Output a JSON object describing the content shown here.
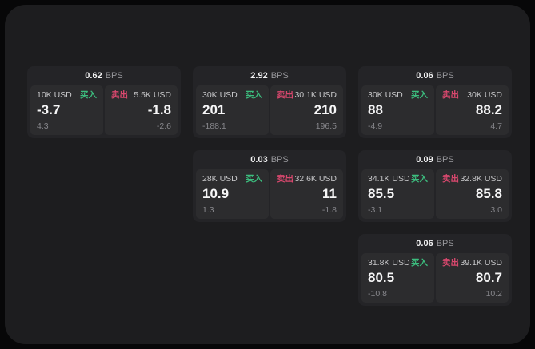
{
  "labels": {
    "bps_unit": "BPS",
    "buy": "买入",
    "sell": "卖出"
  },
  "colors": {
    "buy_green": "#3cbd7e",
    "sell_red": "#d9486e",
    "panel_bg": "#1d1d1f",
    "card_bg": "#242427",
    "tile_bg": "#2c2c2e"
  },
  "cards": [
    {
      "spread": "0.62",
      "buy": {
        "amount": "10K USD",
        "price": "-3.7",
        "change": "4.3"
      },
      "sell": {
        "amount": "5.5K USD",
        "price": "-1.8",
        "change": "-2.6"
      }
    },
    {
      "spread": "2.92",
      "buy": {
        "amount": "30K USD",
        "price": "201",
        "change": "-188.1"
      },
      "sell": {
        "amount": "30.1K USD",
        "price": "210",
        "change": "196.5"
      }
    },
    {
      "spread": "0.06",
      "buy": {
        "amount": "30K USD",
        "price": "88",
        "change": "-4.9"
      },
      "sell": {
        "amount": "30K USD",
        "price": "88.2",
        "change": "4.7"
      }
    },
    {
      "spread": "0.03",
      "buy": {
        "amount": "28K USD",
        "price": "10.9",
        "change": "1.3"
      },
      "sell": {
        "amount": "32.6K USD",
        "price": "11",
        "change": "-1.8"
      }
    },
    {
      "spread": "0.09",
      "buy": {
        "amount": "34.1K USD",
        "price": "85.5",
        "change": "-3.1"
      },
      "sell": {
        "amount": "32.8K USD",
        "price": "85.8",
        "change": "3.0"
      }
    },
    {
      "spread": "0.06",
      "buy": {
        "amount": "31.8K USD",
        "price": "80.5",
        "change": "-10.8"
      },
      "sell": {
        "amount": "39.1K USD",
        "price": "80.7",
        "change": "10.2"
      }
    }
  ]
}
